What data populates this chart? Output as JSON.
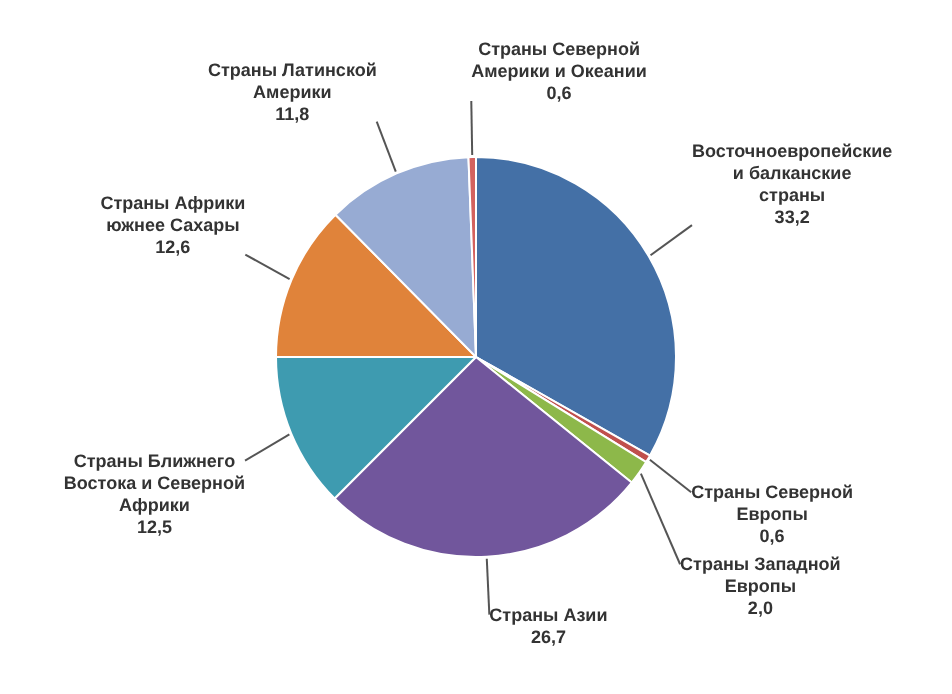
{
  "chart_data": {
    "type": "pie",
    "categories": [
      "Восточноевропейские и балканские страны",
      "Страны Северной Европы",
      "Страны Западной Европы",
      "Страны Азии",
      "Страны Ближнего Востока и Северной Африки",
      "Страны Африки южнее Сахары",
      "Страны Латинской Америки",
      "Страны Северной Америки и Океании"
    ],
    "values": [
      33.2,
      0.6,
      2.0,
      26.7,
      12.5,
      12.6,
      11.8,
      0.6
    ],
    "colors": [
      "#4470a6",
      "#c0504d",
      "#8db84a",
      "#71569c",
      "#3e9bb0",
      "#e0833a",
      "#97abd3",
      "#d4625f"
    ],
    "value_labels": [
      "33,2",
      "0,6",
      "2,0",
      "26,7",
      "12,5",
      "12,6",
      "11,8",
      "0,6"
    ],
    "legend": false
  }
}
